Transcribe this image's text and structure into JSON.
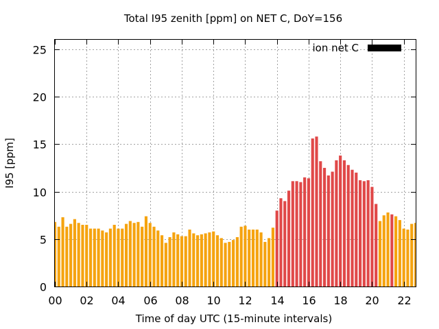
{
  "chart_data": {
    "type": "bar",
    "title": "Total I95 zenith [ppm] on NET C, DoY=156",
    "xlabel": "Time of day UTC (15-minute intervals)",
    "ylabel": "I95 [ppm]",
    "xlim": [
      0,
      22.75
    ],
    "ylim": [
      0,
      26
    ],
    "xticks": [
      "00",
      "02",
      "04",
      "06",
      "08",
      "10",
      "12",
      "14",
      "16",
      "18",
      "20",
      "22"
    ],
    "xtick_values": [
      0,
      2,
      4,
      6,
      8,
      10,
      12,
      14,
      16,
      18,
      20,
      22
    ],
    "yticks": [
      0,
      5,
      10,
      15,
      20,
      25
    ],
    "grid": true,
    "legend": {
      "label": "ion net C",
      "position": "top-right",
      "color": "#000000"
    },
    "bar_width_hours": 0.18,
    "colors": {
      "normal": "#f5a30f",
      "elevated": "#e04848"
    },
    "series": [
      {
        "x": [
          0.0,
          0.25,
          0.5,
          0.75,
          1.0,
          1.25,
          1.5,
          1.75,
          2.0,
          2.25,
          2.5,
          2.75,
          3.0,
          3.25,
          3.5,
          3.75,
          4.0,
          4.25,
          4.5,
          4.75,
          5.0,
          5.25,
          5.5,
          5.75,
          6.0,
          6.25,
          6.5,
          6.75,
          7.0,
          7.25,
          7.5,
          7.75,
          8.0,
          8.25,
          8.5,
          8.75,
          9.0,
          9.25,
          9.5,
          9.75,
          10.0,
          10.25,
          10.5,
          10.75,
          11.0,
          11.25,
          11.5,
          11.75,
          12.0,
          12.25,
          12.5,
          12.75,
          13.0,
          13.25,
          13.5,
          13.75,
          14.0,
          14.25,
          14.5,
          14.75,
          15.0,
          15.25,
          15.5,
          15.75,
          16.0,
          16.25,
          16.5,
          16.75,
          17.0,
          17.25,
          17.5,
          17.75,
          18.0,
          18.25,
          18.5,
          18.75,
          19.0,
          19.25,
          19.5,
          19.75,
          20.0,
          20.25,
          20.5,
          20.75,
          21.0,
          21.25,
          21.5,
          21.75,
          22.0,
          22.25,
          22.5,
          22.75
        ],
        "values": [
          6.8,
          6.3,
          7.3,
          6.3,
          6.6,
          7.1,
          6.7,
          6.5,
          6.5,
          6.1,
          6.1,
          6.1,
          5.9,
          5.7,
          6.1,
          6.5,
          6.1,
          6.1,
          6.6,
          6.9,
          6.7,
          6.8,
          6.3,
          7.4,
          6.7,
          6.3,
          5.9,
          5.4,
          4.6,
          5.2,
          5.7,
          5.5,
          5.3,
          5.3,
          6.0,
          5.6,
          5.4,
          5.5,
          5.6,
          5.7,
          5.8,
          5.4,
          5.1,
          4.6,
          4.7,
          4.9,
          5.2,
          6.3,
          6.4,
          6.0,
          6.0,
          6.0,
          5.7,
          4.7,
          5.1,
          6.2,
          8.0,
          9.3,
          9.0,
          10.1,
          11.1,
          11.1,
          11.0,
          11.5,
          11.4,
          15.6,
          15.8,
          13.2,
          12.5,
          11.7,
          12.1,
          13.3,
          13.8,
          13.3,
          12.8,
          12.3,
          12.0,
          11.2,
          11.1,
          11.2,
          10.5,
          8.7,
          6.9,
          7.5,
          7.8,
          7.6,
          7.4,
          7.0,
          6.1,
          6.0,
          6.6,
          6.7
        ],
        "categories": [
          "normal",
          "normal",
          "normal",
          "normal",
          "normal",
          "normal",
          "normal",
          "normal",
          "normal",
          "normal",
          "normal",
          "normal",
          "normal",
          "normal",
          "normal",
          "normal",
          "normal",
          "normal",
          "normal",
          "normal",
          "normal",
          "normal",
          "normal",
          "normal",
          "normal",
          "normal",
          "normal",
          "normal",
          "normal",
          "normal",
          "normal",
          "normal",
          "normal",
          "normal",
          "normal",
          "normal",
          "normal",
          "normal",
          "normal",
          "normal",
          "normal",
          "normal",
          "normal",
          "normal",
          "normal",
          "normal",
          "normal",
          "normal",
          "normal",
          "normal",
          "normal",
          "normal",
          "normal",
          "normal",
          "normal",
          "normal",
          "elevated",
          "elevated",
          "elevated",
          "elevated",
          "elevated",
          "elevated",
          "elevated",
          "elevated",
          "elevated",
          "elevated",
          "elevated",
          "elevated",
          "elevated",
          "elevated",
          "elevated",
          "elevated",
          "elevated",
          "elevated",
          "elevated",
          "elevated",
          "elevated",
          "elevated",
          "elevated",
          "elevated",
          "elevated",
          "elevated",
          "normal",
          "normal",
          "normal",
          "elevated",
          "normal",
          "normal",
          "normal",
          "normal",
          "normal",
          "normal"
        ]
      }
    ]
  }
}
